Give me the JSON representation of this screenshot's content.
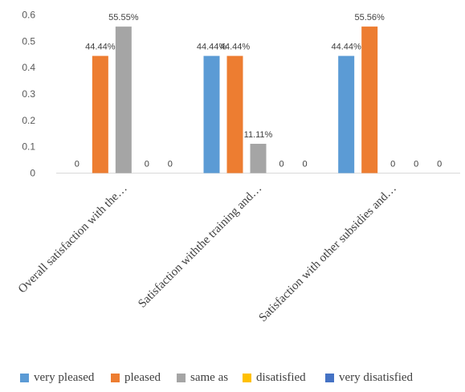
{
  "chart_data": {
    "type": "bar",
    "categories": [
      "Overall satisfaction with the…",
      "Satisfaction withthe training and…",
      "Satisfaction with other subsidies and…"
    ],
    "series": [
      {
        "name": "very pleased",
        "color": "#5B9BD5",
        "values": [
          0,
          0.4444,
          0.4444
        ]
      },
      {
        "name": "pleased",
        "color": "#ED7D31",
        "values": [
          0.4444,
          0.4444,
          0.5556
        ]
      },
      {
        "name": "same as",
        "color": "#A5A5A5",
        "values": [
          0.5555,
          0.1111,
          0
        ]
      },
      {
        "name": "disatisfied",
        "color": "#FFC000",
        "values": [
          0,
          0,
          0
        ]
      },
      {
        "name": "very disatisfied",
        "color": "#4472C4",
        "values": [
          0,
          0,
          0
        ]
      }
    ],
    "data_labels": [
      [
        "0",
        "44.44%",
        "44.44%"
      ],
      [
        "44.44%",
        "44.44%",
        "55.56%"
      ],
      [
        "55.55%",
        "11.11%",
        "0"
      ],
      [
        "0",
        "0",
        "0"
      ],
      [
        "0",
        "0",
        "0"
      ]
    ],
    "y_ticks": [
      "0",
      "0.1",
      "0.2",
      "0.3",
      "0.4",
      "0.5",
      "0.6"
    ],
    "ylim": [
      0,
      0.6
    ],
    "grid": false,
    "legend_position": "bottom"
  }
}
